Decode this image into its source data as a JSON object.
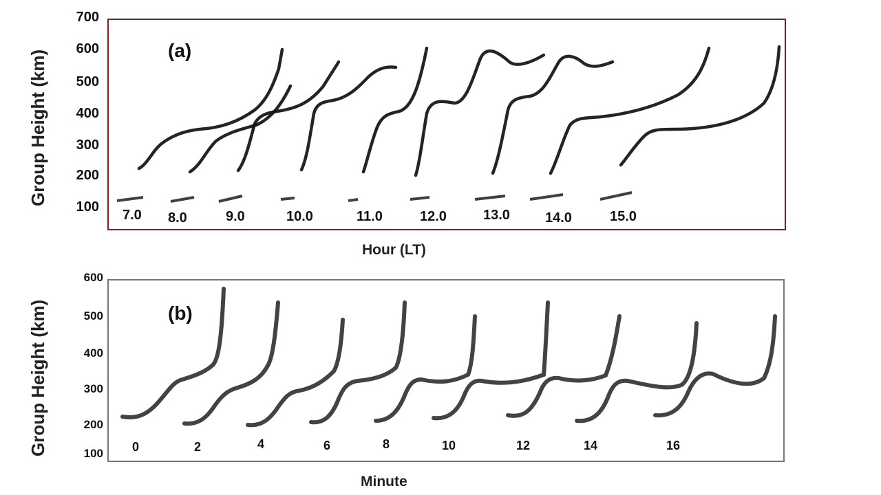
{
  "chart_data": [
    {
      "type": "line",
      "panel_label": "(a)",
      "xlabel": "Hour (LT)",
      "ylabel": "Group Height (km)",
      "ylim": [
        100,
        700
      ],
      "yticks": [
        "700",
        "600",
        "500",
        "400",
        "300",
        "200",
        "100"
      ],
      "xtick_labels": [
        "7.0",
        "8.0",
        "9.0",
        "10.0",
        "11.0",
        "12.0",
        "13.0",
        "14.0",
        "15.0"
      ],
      "trace_color": "#111111",
      "frame_color": "#8b1a1a"
    },
    {
      "type": "line",
      "panel_label": "(b)",
      "xlabel": "Minute",
      "ylabel": "Group Height (km)",
      "ylim": [
        100,
        600
      ],
      "yticks": [
        "600",
        "500",
        "400",
        "300",
        "200",
        "100"
      ],
      "xtick_labels": [
        "0",
        "2",
        "4",
        "6",
        "8",
        "10",
        "12",
        "14",
        "16"
      ],
      "trace_color": "#222222",
      "frame_color": "#777777"
    }
  ]
}
